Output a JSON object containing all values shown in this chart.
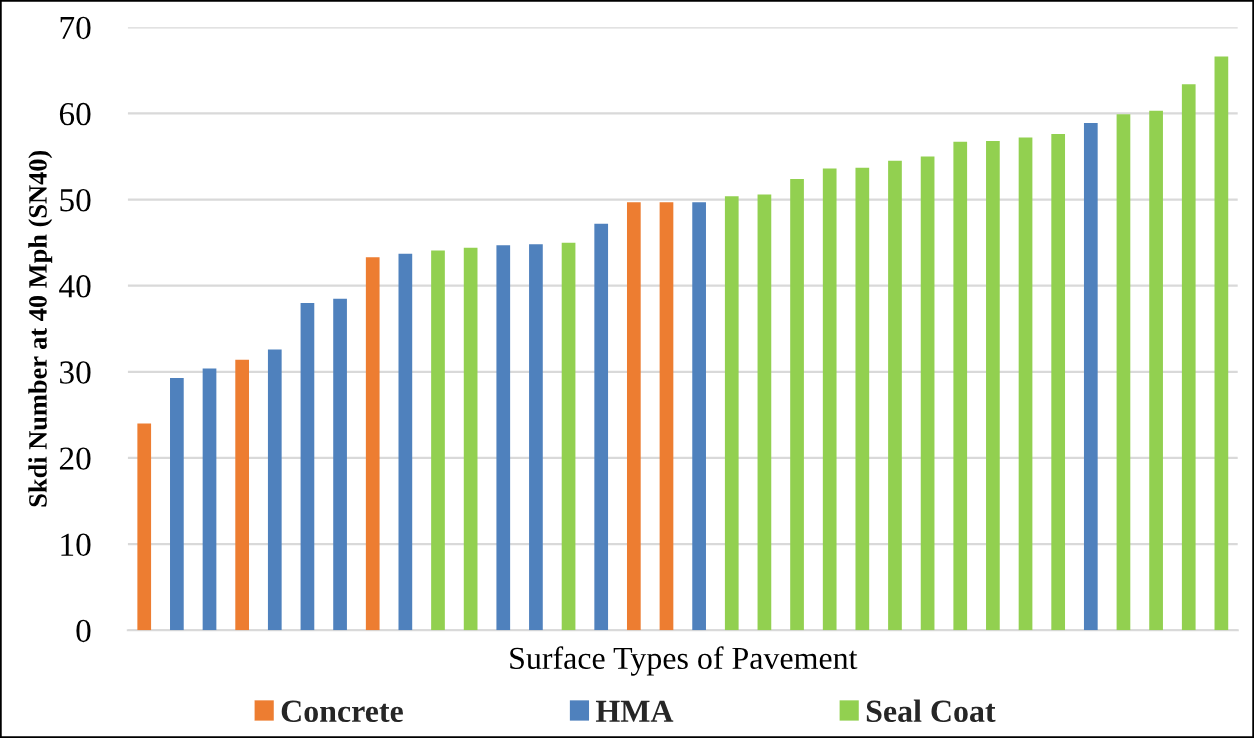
{
  "chart_data": {
    "type": "bar",
    "xlabel": "Surface Types of Pavement",
    "ylabel": "Skdi Number at 40 Mph (SN40)",
    "categories": [
      null,
      null,
      null,
      null,
      null,
      null,
      null,
      null,
      null,
      null,
      null,
      null,
      null,
      null,
      null,
      null,
      null,
      null,
      null,
      null,
      null,
      null,
      null,
      null,
      null,
      null,
      null,
      null,
      null,
      null,
      null,
      null,
      null,
      null
    ],
    "series": [
      {
        "name": "Concrete",
        "color": "#ed7d31",
        "values": [
          24.0,
          null,
          null,
          31.4,
          null,
          null,
          null,
          43.3,
          null,
          null,
          null,
          null,
          null,
          null,
          null,
          49.7,
          49.7,
          null,
          null,
          null,
          null,
          null,
          null,
          null,
          null,
          null,
          null,
          null,
          null,
          null,
          null,
          null,
          null,
          null
        ]
      },
      {
        "name": "HMA",
        "color": "#4f81bd",
        "values": [
          null,
          29.3,
          30.4,
          null,
          32.6,
          38.0,
          38.5,
          null,
          43.7,
          null,
          null,
          44.7,
          44.8,
          null,
          47.2,
          null,
          null,
          49.7,
          null,
          null,
          null,
          null,
          null,
          null,
          null,
          null,
          null,
          null,
          null,
          58.9,
          null,
          null,
          null,
          null
        ]
      },
      {
        "name": "Seal Coat",
        "color": "#92d050",
        "values": [
          null,
          null,
          null,
          null,
          null,
          null,
          null,
          null,
          null,
          44.1,
          44.4,
          null,
          null,
          45.0,
          null,
          null,
          null,
          null,
          50.4,
          50.6,
          52.4,
          53.6,
          53.7,
          54.5,
          55.0,
          56.7,
          56.8,
          57.2,
          57.6,
          null,
          59.9,
          60.3,
          63.4,
          66.6
        ]
      }
    ],
    "ylim": [
      0,
      70
    ],
    "yticks": [
      0,
      10,
      20,
      30,
      40,
      50,
      60,
      70
    ],
    "grid": "y",
    "legend": "bottom"
  }
}
